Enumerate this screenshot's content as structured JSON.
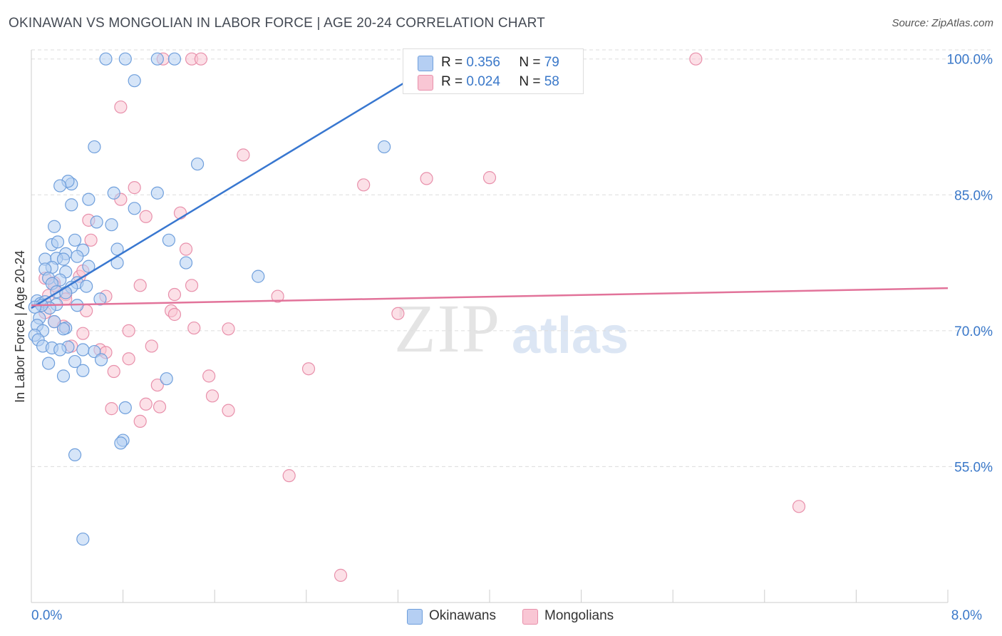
{
  "title": "OKINAWAN VS MONGOLIAN IN LABOR FORCE | AGE 20-24 CORRELATION CHART",
  "source": "Source: ZipAtlas.com",
  "watermark": {
    "zip": "ZIP",
    "atlas": "atlas"
  },
  "legend": {
    "rows": [
      {
        "r_label": "R =",
        "r_value": "0.356",
        "n_label": "N =",
        "n_value": "79"
      },
      {
        "r_label": "R =",
        "r_value": "0.024",
        "n_label": "N =",
        "n_value": "58"
      }
    ]
  },
  "chart_data": {
    "type": "scatter",
    "title": "OKINAWAN VS MONGOLIAN IN LABOR FORCE | AGE 20-24 CORRELATION CHART",
    "xlabel": "",
    "ylabel": "In Labor Force | Age 20-24",
    "xlim": [
      0,
      8
    ],
    "ylim": [
      40,
      101
    ],
    "x_tick_labels": [
      {
        "value": 0,
        "label": "0.0%"
      },
      {
        "value": 8,
        "label": "8.0%"
      }
    ],
    "x_minor_ticks": [
      0.8,
      1.6,
      2.4,
      3.2,
      4.0,
      4.8,
      5.6,
      6.4,
      7.2,
      8.0
    ],
    "y_ticks": [
      {
        "value": 55,
        "label": "55.0%"
      },
      {
        "value": 70,
        "label": "70.0%"
      },
      {
        "value": 85,
        "label": "85.0%"
      },
      {
        "value": 100,
        "label": "100.0%"
      }
    ],
    "grid": true,
    "colors": {
      "okinawans_fill": "#b5cff3",
      "okinawans_stroke": "#6f9fdc",
      "okinawans_line": "#3877d0",
      "mongolians_fill": "#f9c6d4",
      "mongolians_stroke": "#e890ab",
      "mongolians_line": "#e2739a",
      "grid": "#dddddd",
      "axis_label": "#3a78c9"
    },
    "series": [
      {
        "name": "Okinawans",
        "R": 0.356,
        "N": 79,
        "trend": {
          "x0": 0.0,
          "y0": 72.5,
          "x1": 3.6,
          "y1": 100.0
        },
        "points": [
          [
            0.65,
            100.0
          ],
          [
            0.82,
            100.0
          ],
          [
            1.1,
            100.0
          ],
          [
            1.25,
            100.0
          ],
          [
            0.9,
            97.6
          ],
          [
            0.55,
            90.3
          ],
          [
            1.45,
            88.4
          ],
          [
            3.08,
            90.3
          ],
          [
            0.35,
            86.2
          ],
          [
            0.32,
            86.5
          ],
          [
            0.25,
            86.0
          ],
          [
            0.5,
            84.5
          ],
          [
            0.35,
            83.9
          ],
          [
            0.72,
            85.2
          ],
          [
            1.1,
            85.2
          ],
          [
            0.9,
            83.5
          ],
          [
            0.57,
            82.0
          ],
          [
            0.7,
            81.7
          ],
          [
            0.2,
            81.5
          ],
          [
            0.38,
            80.0
          ],
          [
            0.18,
            79.5
          ],
          [
            0.23,
            79.8
          ],
          [
            0.3,
            78.5
          ],
          [
            0.45,
            78.9
          ],
          [
            0.12,
            77.9
          ],
          [
            0.22,
            78.0
          ],
          [
            0.28,
            77.9
          ],
          [
            0.4,
            78.2
          ],
          [
            0.75,
            79.0
          ],
          [
            0.18,
            77.0
          ],
          [
            0.5,
            77.1
          ],
          [
            0.12,
            76.8
          ],
          [
            0.3,
            76.5
          ],
          [
            0.15,
            75.8
          ],
          [
            0.25,
            75.6
          ],
          [
            0.4,
            75.3
          ],
          [
            0.18,
            75.2
          ],
          [
            0.35,
            74.8
          ],
          [
            0.48,
            74.9
          ],
          [
            0.22,
            74.3
          ],
          [
            0.3,
            74.2
          ],
          [
            0.6,
            73.5
          ],
          [
            0.05,
            73.3
          ],
          [
            0.08,
            73.0
          ],
          [
            0.12,
            73.2
          ],
          [
            0.22,
            72.9
          ],
          [
            0.16,
            72.5
          ],
          [
            0.09,
            72.8
          ],
          [
            0.03,
            72.6
          ],
          [
            0.07,
            71.4
          ],
          [
            0.05,
            70.6
          ],
          [
            0.1,
            70.0
          ],
          [
            0.3,
            70.3
          ],
          [
            0.28,
            70.2
          ],
          [
            0.03,
            69.5
          ],
          [
            0.06,
            69.0
          ],
          [
            0.1,
            68.3
          ],
          [
            0.18,
            68.1
          ],
          [
            0.32,
            68.2
          ],
          [
            0.25,
            67.9
          ],
          [
            0.45,
            67.9
          ],
          [
            0.55,
            67.7
          ],
          [
            0.61,
            66.8
          ],
          [
            0.15,
            66.4
          ],
          [
            0.38,
            66.6
          ],
          [
            0.45,
            65.6
          ],
          [
            0.28,
            65.0
          ],
          [
            1.18,
            64.7
          ],
          [
            1.98,
            76.0
          ],
          [
            1.2,
            80.0
          ],
          [
            1.35,
            77.5
          ],
          [
            0.75,
            77.5
          ],
          [
            0.82,
            61.5
          ],
          [
            0.8,
            57.9
          ],
          [
            0.78,
            57.6
          ],
          [
            0.38,
            56.3
          ],
          [
            0.45,
            47.0
          ],
          [
            0.2,
            71.0
          ],
          [
            0.4,
            72.8
          ]
        ]
      },
      {
        "name": "Mongolians",
        "R": 0.024,
        "N": 58,
        "trend": {
          "x0": 0.0,
          "y0": 72.8,
          "x1": 8.0,
          "y1": 74.7
        },
        "points": [
          [
            1.15,
            100.0
          ],
          [
            1.4,
            100.0
          ],
          [
            1.48,
            100.0
          ],
          [
            5.8,
            100.0
          ],
          [
            0.78,
            94.7
          ],
          [
            1.85,
            89.4
          ],
          [
            2.9,
            86.1
          ],
          [
            3.45,
            86.8
          ],
          [
            4.0,
            86.9
          ],
          [
            0.9,
            85.8
          ],
          [
            0.78,
            84.5
          ],
          [
            1.3,
            83.0
          ],
          [
            1.0,
            82.6
          ],
          [
            0.5,
            82.2
          ],
          [
            0.52,
            80.0
          ],
          [
            1.35,
            79.0
          ],
          [
            0.42,
            76.0
          ],
          [
            0.45,
            76.6
          ],
          [
            0.2,
            75.3
          ],
          [
            0.12,
            75.8
          ],
          [
            0.2,
            75.0
          ],
          [
            0.95,
            75.0
          ],
          [
            1.4,
            75.0
          ],
          [
            0.3,
            74.0
          ],
          [
            1.25,
            74.0
          ],
          [
            0.15,
            73.9
          ],
          [
            0.65,
            73.8
          ],
          [
            2.15,
            73.8
          ],
          [
            0.3,
            73.5
          ],
          [
            0.48,
            72.2
          ],
          [
            1.22,
            72.2
          ],
          [
            1.25,
            71.8
          ],
          [
            0.12,
            72.0
          ],
          [
            3.2,
            71.9
          ],
          [
            0.2,
            71.0
          ],
          [
            0.28,
            70.5
          ],
          [
            0.85,
            70.0
          ],
          [
            1.42,
            70.3
          ],
          [
            1.72,
            70.2
          ],
          [
            0.45,
            69.7
          ],
          [
            0.35,
            68.3
          ],
          [
            1.05,
            68.3
          ],
          [
            0.6,
            67.9
          ],
          [
            0.65,
            67.6
          ],
          [
            0.85,
            66.9
          ],
          [
            2.42,
            65.8
          ],
          [
            0.72,
            65.5
          ],
          [
            1.55,
            65.0
          ],
          [
            1.1,
            64.0
          ],
          [
            1.58,
            62.8
          ],
          [
            1.0,
            61.9
          ],
          [
            1.12,
            61.6
          ],
          [
            0.7,
            61.4
          ],
          [
            1.72,
            61.2
          ],
          [
            0.95,
            60.0
          ],
          [
            2.25,
            54.0
          ],
          [
            6.7,
            50.6
          ],
          [
            2.7,
            43.0
          ]
        ]
      }
    ]
  }
}
